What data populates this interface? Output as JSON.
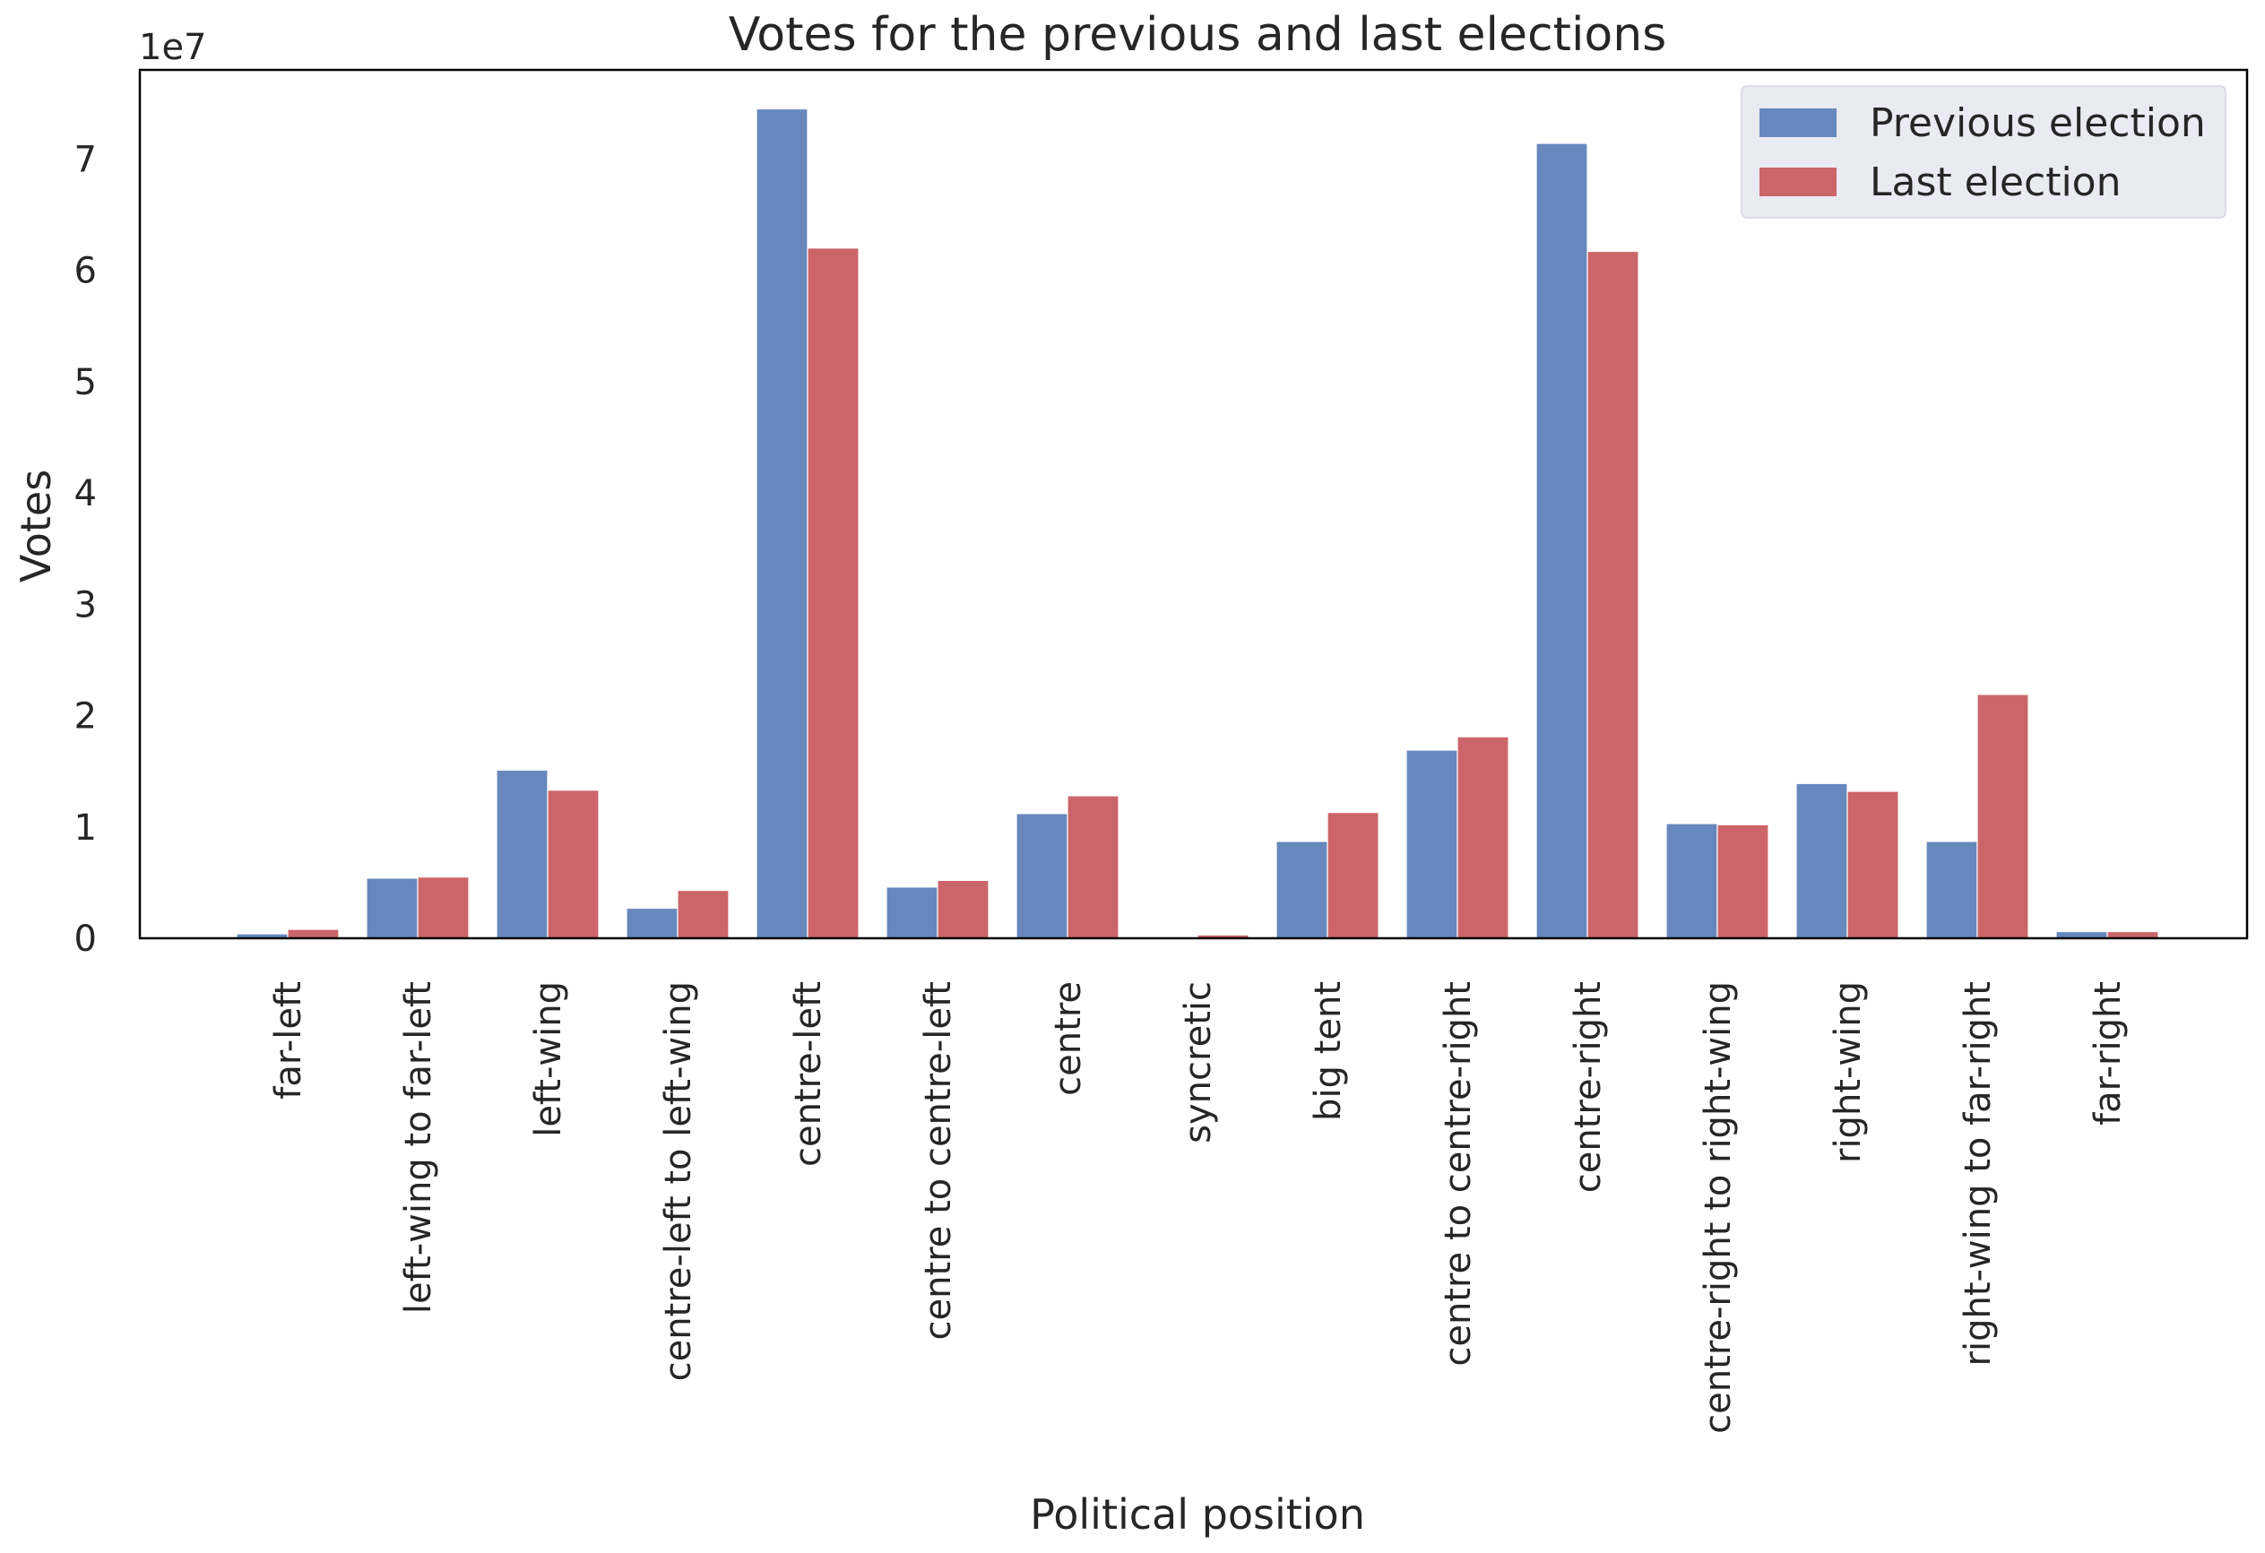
{
  "chart_data": {
    "type": "bar",
    "title": "Votes for the previous and last elections",
    "xlabel": "Political position",
    "ylabel": "Votes",
    "y_offset_label": "1e7",
    "ylim": [
      0,
      78000000
    ],
    "y_ticks": [
      0,
      10000000,
      20000000,
      30000000,
      40000000,
      50000000,
      60000000,
      70000000
    ],
    "y_tick_labels": [
      "0",
      "1",
      "2",
      "3",
      "4",
      "5",
      "6",
      "7"
    ],
    "grid": false,
    "legend_position": "top-right",
    "categories": [
      "far-left",
      "left-wing to far-left",
      "left-wing",
      "centre-left to left-wing",
      "centre-left",
      "centre to centre-left",
      "centre",
      "syncretic",
      "big tent",
      "centre to centre-right",
      "centre-right",
      "centre-right to right-wing",
      "right-wing",
      "right-wing to far-right",
      "far-right"
    ],
    "series": [
      {
        "name": "Previous election",
        "color": "#6788bd",
        "values": [
          400000,
          5400000,
          15100000,
          2700000,
          74500000,
          4600000,
          11200000,
          0,
          8700000,
          16900000,
          71400000,
          10300000,
          13900000,
          8700000,
          600000
        ]
      },
      {
        "name": "Last election",
        "color": "#cc6569",
        "values": [
          800000,
          5500000,
          13300000,
          4300000,
          62000000,
          5200000,
          12800000,
          300000,
          11300000,
          18100000,
          61700000,
          10200000,
          13200000,
          21900000,
          600000
        ]
      }
    ]
  }
}
